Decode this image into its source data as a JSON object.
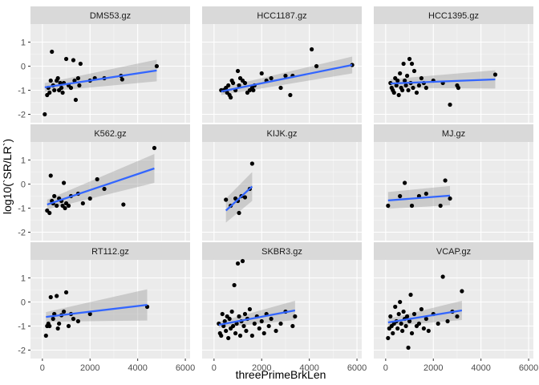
{
  "chart_data": {
    "type": "scatter",
    "facet": "panels",
    "xlabel": "threePrimeBrkLen",
    "ylabel": "log10(`SR/LR`)",
    "xlim": [
      -500,
      6200
    ],
    "ylim": [
      -2.35,
      1.75
    ],
    "x_ticks": [
      0,
      2000,
      4000,
      6000
    ],
    "x_tick_labels": [
      "0",
      "2000",
      "4000",
      "6000"
    ],
    "y_ticks": [
      -2,
      -1,
      0,
      1
    ],
    "y_tick_labels": [
      "-2",
      "-1",
      "0",
      "1"
    ],
    "grid": true,
    "smooth": {
      "method": "lm",
      "se": true
    },
    "panels": [
      {
        "name": "DMS53.gz",
        "points": [
          [
            100,
            -2.0
          ],
          [
            200,
            -1.2
          ],
          [
            250,
            -0.9
          ],
          [
            300,
            -1.1
          ],
          [
            350,
            -0.6
          ],
          [
            400,
            0.6
          ],
          [
            450,
            -0.8
          ],
          [
            500,
            -1.0
          ],
          [
            600,
            -0.6
          ],
          [
            650,
            -0.5
          ],
          [
            700,
            -1.0
          ],
          [
            750,
            -0.7
          ],
          [
            800,
            -0.9
          ],
          [
            850,
            -1.1
          ],
          [
            900,
            -0.7
          ],
          [
            1000,
            0.3
          ],
          [
            1100,
            -0.8
          ],
          [
            1200,
            -0.9
          ],
          [
            1300,
            0.25
          ],
          [
            1350,
            -0.6
          ],
          [
            1400,
            -1.4
          ],
          [
            1500,
            -0.5
          ],
          [
            1550,
            -0.8
          ],
          [
            1600,
            0.1
          ],
          [
            2000,
            -0.6
          ],
          [
            2200,
            -0.5
          ],
          [
            2600,
            -0.5
          ],
          [
            3300,
            -0.4
          ],
          [
            3350,
            -0.55
          ],
          [
            4800,
            0.0
          ]
        ],
        "fit": {
          "x0": 100,
          "x1": 4800,
          "y0": -0.88,
          "y1": -0.18,
          "se0": 0.18,
          "se1": 0.45
        }
      },
      {
        "name": "HCC1187.gz",
        "points": [
          [
            300,
            -1.0
          ],
          [
            400,
            -1.0
          ],
          [
            500,
            -0.9
          ],
          [
            550,
            -1.1
          ],
          [
            600,
            -0.8
          ],
          [
            650,
            -1.2
          ],
          [
            700,
            -1.3
          ],
          [
            750,
            -0.6
          ],
          [
            800,
            -0.7
          ],
          [
            900,
            -1.0
          ],
          [
            1000,
            -0.2
          ],
          [
            1050,
            -0.8
          ],
          [
            1100,
            -0.5
          ],
          [
            1200,
            -0.6
          ],
          [
            1300,
            -0.7
          ],
          [
            1400,
            -1.1
          ],
          [
            1500,
            -1.0
          ],
          [
            1600,
            -0.9
          ],
          [
            1650,
            -1.0
          ],
          [
            1700,
            -0.8
          ],
          [
            2000,
            -0.3
          ],
          [
            2200,
            -0.6
          ],
          [
            2400,
            -0.5
          ],
          [
            2800,
            -0.9
          ],
          [
            3000,
            -0.4
          ],
          [
            3200,
            -1.2
          ],
          [
            3300,
            -0.4
          ],
          [
            4100,
            0.7
          ],
          [
            4300,
            0.0
          ],
          [
            5800,
            0.05
          ]
        ],
        "fit": {
          "x0": 300,
          "x1": 5800,
          "y0": -1.05,
          "y1": 0.05,
          "se0": 0.15,
          "se1": 0.35
        }
      },
      {
        "name": "HCC1395.gz",
        "points": [
          [
            200,
            -0.7
          ],
          [
            250,
            -0.9
          ],
          [
            300,
            -1.0
          ],
          [
            350,
            -1.1
          ],
          [
            400,
            -0.5
          ],
          [
            450,
            -0.8
          ],
          [
            500,
            -0.6
          ],
          [
            550,
            -1.2
          ],
          [
            600,
            -0.3
          ],
          [
            650,
            -0.9
          ],
          [
            700,
            -1.0
          ],
          [
            750,
            0.1
          ],
          [
            800,
            -0.6
          ],
          [
            850,
            -0.8
          ],
          [
            900,
            -0.4
          ],
          [
            950,
            -1.0
          ],
          [
            1000,
            0.3
          ],
          [
            1050,
            -0.7
          ],
          [
            1100,
            0.1
          ],
          [
            1150,
            -0.9
          ],
          [
            1200,
            -0.2
          ],
          [
            1300,
            -1.1
          ],
          [
            1400,
            -0.8
          ],
          [
            1500,
            -0.5
          ],
          [
            1600,
            -0.7
          ],
          [
            1700,
            -0.9
          ],
          [
            2000,
            -0.6
          ],
          [
            2400,
            -0.7
          ],
          [
            2700,
            -1.6
          ],
          [
            3000,
            -0.8
          ],
          [
            3050,
            -0.9
          ],
          [
            4600,
            -0.35
          ]
        ],
        "fit": {
          "x0": 200,
          "x1": 4600,
          "y0": -0.72,
          "y1": -0.55,
          "se0": 0.18,
          "se1": 0.38
        }
      },
      {
        "name": "K562.gz",
        "points": [
          [
            200,
            -1.1
          ],
          [
            300,
            -1.2
          ],
          [
            350,
            0.35
          ],
          [
            400,
            -0.7
          ],
          [
            450,
            -0.8
          ],
          [
            500,
            -0.5
          ],
          [
            600,
            -0.9
          ],
          [
            700,
            -0.6
          ],
          [
            800,
            -0.7
          ],
          [
            850,
            -0.9
          ],
          [
            900,
            0.05
          ],
          [
            950,
            -1.0
          ],
          [
            1000,
            -0.8
          ],
          [
            1100,
            -0.9
          ],
          [
            1200,
            -0.5
          ],
          [
            1500,
            -0.4
          ],
          [
            1700,
            -0.8
          ],
          [
            2000,
            -0.6
          ],
          [
            2300,
            0.2
          ],
          [
            2600,
            -0.2
          ],
          [
            3400,
            -0.85
          ],
          [
            4700,
            1.5
          ]
        ],
        "fit": {
          "x0": 200,
          "x1": 4700,
          "y0": -0.85,
          "y1": 0.65,
          "se0": 0.2,
          "se1": 0.6
        }
      },
      {
        "name": "KIJK.gz",
        "points": [
          [
            500,
            -0.65
          ],
          [
            700,
            -0.9
          ],
          [
            900,
            -0.6
          ],
          [
            1000,
            -0.7
          ],
          [
            1050,
            -1.2
          ],
          [
            1150,
            -0.5
          ],
          [
            1300,
            -0.55
          ],
          [
            1500,
            -0.2
          ],
          [
            1600,
            0.85
          ]
        ],
        "fit": {
          "x0": 500,
          "x1": 1600,
          "y0": -1.1,
          "y1": -0.1,
          "se0": 0.5,
          "se1": 0.6
        }
      },
      {
        "name": "MJ.gz",
        "points": [
          [
            100,
            -0.9
          ],
          [
            600,
            -0.5
          ],
          [
            800,
            0.05
          ],
          [
            1100,
            -0.9
          ],
          [
            1400,
            -0.5
          ],
          [
            1700,
            -0.4
          ],
          [
            2300,
            -0.9
          ],
          [
            2500,
            0.15
          ],
          [
            2700,
            -0.6
          ]
        ],
        "fit": {
          "x0": 100,
          "x1": 2700,
          "y0": -0.68,
          "y1": -0.48,
          "se0": 0.35,
          "se1": 0.4
        }
      },
      {
        "name": "RT112.gz",
        "points": [
          [
            150,
            -1.4
          ],
          [
            200,
            -1.0
          ],
          [
            250,
            -0.9
          ],
          [
            300,
            -1.0
          ],
          [
            350,
            0.2
          ],
          [
            450,
            -0.7
          ],
          [
            500,
            -0.5
          ],
          [
            600,
            0.25
          ],
          [
            650,
            -1.1
          ],
          [
            700,
            -0.9
          ],
          [
            800,
            -0.55
          ],
          [
            900,
            -0.4
          ],
          [
            1000,
            0.4
          ],
          [
            1100,
            -1.0
          ],
          [
            1200,
            -0.5
          ],
          [
            1300,
            -0.7
          ],
          [
            1500,
            -0.8
          ],
          [
            2000,
            -0.5
          ],
          [
            4400,
            -0.2
          ]
        ],
        "fit": {
          "x0": 150,
          "x1": 4400,
          "y0": -0.62,
          "y1": -0.12,
          "se0": 0.2,
          "se1": 0.65
        }
      },
      {
        "name": "SKBR3.gz",
        "points": [
          [
            200,
            -0.9
          ],
          [
            250,
            -1.3
          ],
          [
            300,
            -1.4
          ],
          [
            350,
            -0.5
          ],
          [
            400,
            -1.0
          ],
          [
            450,
            -0.8
          ],
          [
            500,
            -1.2
          ],
          [
            550,
            -0.6
          ],
          [
            600,
            -1.5
          ],
          [
            650,
            -0.7
          ],
          [
            700,
            -1.1
          ],
          [
            750,
            -0.4
          ],
          [
            800,
            -1.0
          ],
          [
            850,
            0.7
          ],
          [
            900,
            -1.3
          ],
          [
            950,
            -0.9
          ],
          [
            1000,
            1.6
          ],
          [
            1050,
            -0.6
          ],
          [
            1100,
            -1.4
          ],
          [
            1150,
            -0.8
          ],
          [
            1200,
            1.7
          ],
          [
            1250,
            -1.0
          ],
          [
            1300,
            -0.5
          ],
          [
            1350,
            -1.2
          ],
          [
            1400,
            -0.7
          ],
          [
            1500,
            -0.3
          ],
          [
            1600,
            -1.4
          ],
          [
            1700,
            -0.9
          ],
          [
            1800,
            -0.6
          ],
          [
            1900,
            -1.1
          ],
          [
            2000,
            -0.8
          ],
          [
            2100,
            -1.3
          ],
          [
            2200,
            -0.5
          ],
          [
            2300,
            -1.0
          ],
          [
            2400,
            -0.7
          ],
          [
            2600,
            -1.2
          ],
          [
            2800,
            -0.9
          ],
          [
            3000,
            -0.4
          ],
          [
            3300,
            -1.0
          ],
          [
            3400,
            -0.6
          ]
        ],
        "fit": {
          "x0": 200,
          "x1": 3400,
          "y0": -0.95,
          "y1": -0.35,
          "se0": 0.12,
          "se1": 0.4
        }
      },
      {
        "name": "VCAP.gz",
        "points": [
          [
            100,
            -1.5
          ],
          [
            150,
            -1.1
          ],
          [
            200,
            -0.6
          ],
          [
            250,
            -1.0
          ],
          [
            300,
            -1.3
          ],
          [
            350,
            -0.9
          ],
          [
            400,
            -0.2
          ],
          [
            450,
            -0.8
          ],
          [
            500,
            -1.1
          ],
          [
            550,
            -0.5
          ],
          [
            600,
            0.0
          ],
          [
            650,
            -0.9
          ],
          [
            700,
            -1.2
          ],
          [
            750,
            -0.4
          ],
          [
            800,
            -0.7
          ],
          [
            850,
            -1.0
          ],
          [
            900,
            -0.6
          ],
          [
            950,
            -1.9
          ],
          [
            1000,
            -0.8
          ],
          [
            1050,
            0.3
          ],
          [
            1100,
            -1.3
          ],
          [
            1200,
            -0.5
          ],
          [
            1300,
            -1.0
          ],
          [
            1400,
            -0.9
          ],
          [
            1500,
            -0.3
          ],
          [
            1600,
            -1.1
          ],
          [
            1700,
            -0.7
          ],
          [
            1800,
            -1.2
          ],
          [
            2000,
            -0.5
          ],
          [
            2200,
            -0.9
          ],
          [
            2400,
            1.05
          ],
          [
            2600,
            -0.8
          ],
          [
            2800,
            -0.4
          ],
          [
            3000,
            -0.6
          ],
          [
            3200,
            0.45
          ]
        ],
        "fit": {
          "x0": 100,
          "x1": 3200,
          "y0": -0.85,
          "y1": -0.35,
          "se0": 0.15,
          "se1": 0.4
        }
      }
    ]
  }
}
